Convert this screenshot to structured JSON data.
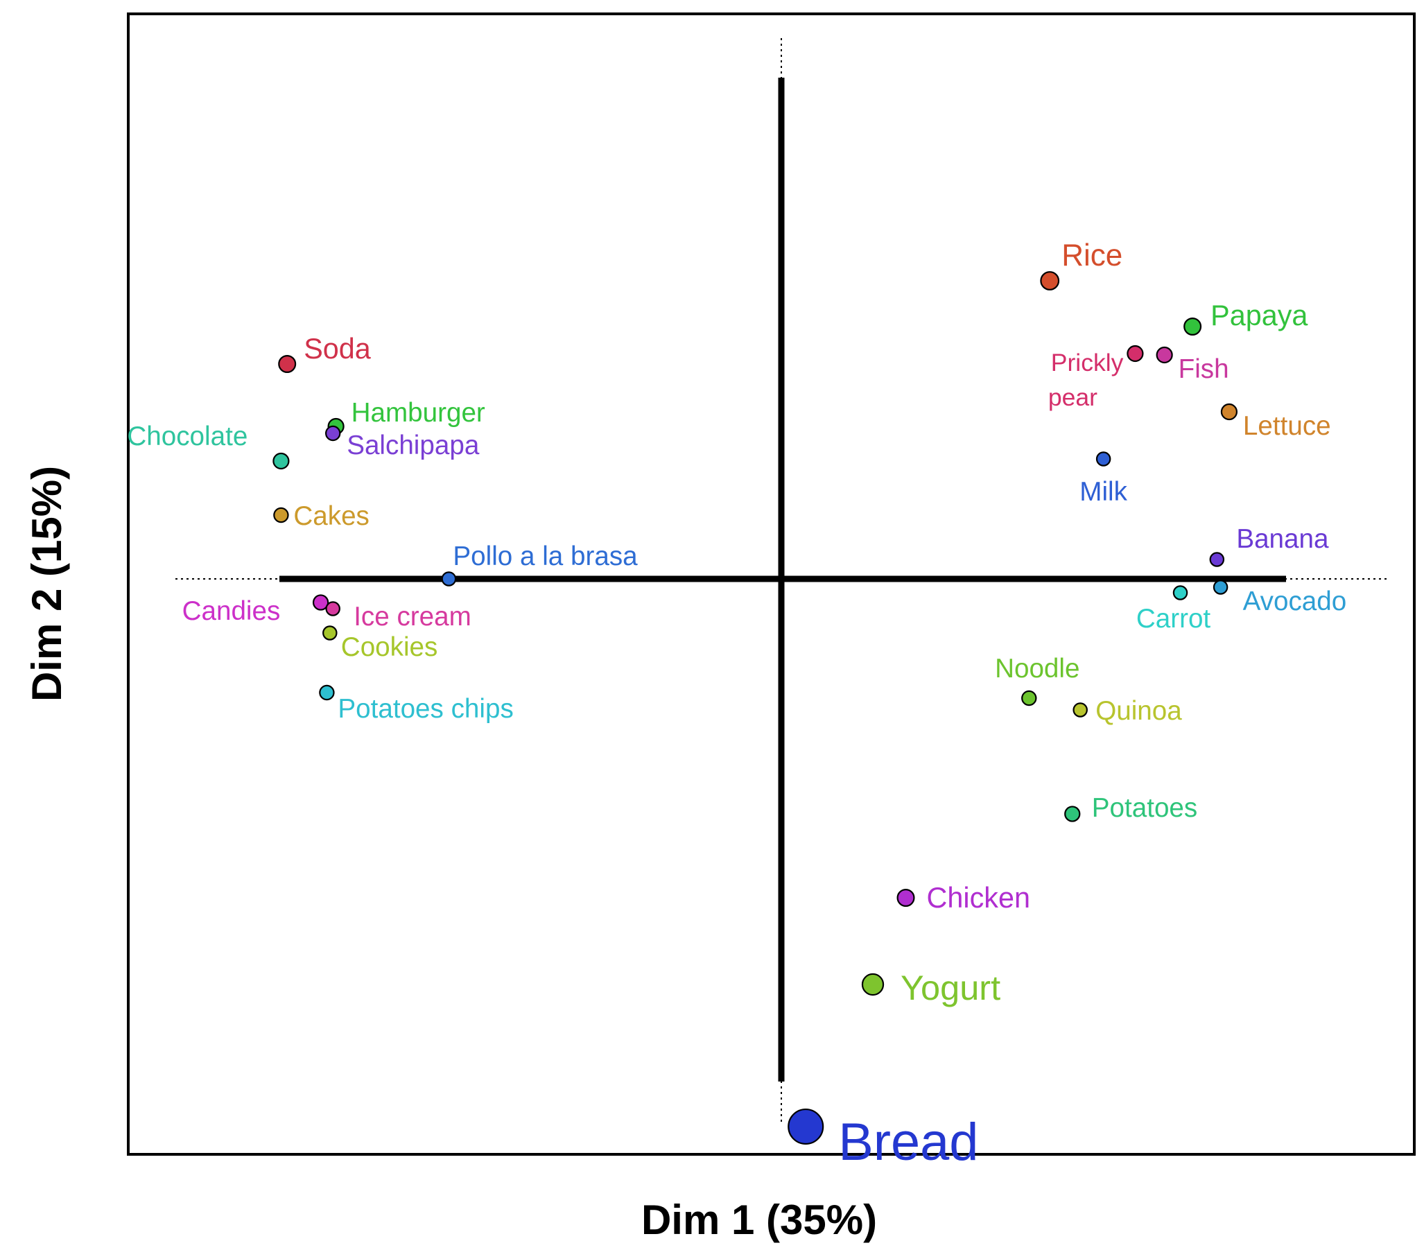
{
  "chart_data": {
    "type": "scatter",
    "title": "",
    "xlabel": "Dim 1 (35%)",
    "ylabel": "Dim 2 (15%)",
    "xlim": [
      -1.0,
      1.0
    ],
    "ylim": [
      -1.0,
      1.0
    ],
    "grid": false,
    "legend": "none",
    "points": [
      {
        "label": "Soda",
        "x": -0.81,
        "y": 0.31,
        "color": "#d0314a",
        "weight": 1.1
      },
      {
        "label": "Chocolate",
        "x": -0.82,
        "y": 0.17,
        "color": "#2fc49e",
        "weight": 1.0
      },
      {
        "label": "Hamburger",
        "x": -0.73,
        "y": 0.22,
        "color": "#33c43d",
        "weight": 1.0
      },
      {
        "label": "Salchipapa",
        "x": -0.735,
        "y": 0.21,
        "color": "#7a3fd4",
        "weight": 0.9
      },
      {
        "label": "Cakes",
        "x": -0.82,
        "y": 0.092,
        "color": "#cc9a2c",
        "weight": 0.9
      },
      {
        "label": "Pollo a la brasa",
        "x": -0.545,
        "y": 0.0,
        "color": "#2e6dd4",
        "weight": 0.85
      },
      {
        "label": "Candies",
        "x": -0.755,
        "y": -0.034,
        "color": "#cc30c9",
        "weight": 0.95
      },
      {
        "label": "Ice cream",
        "x": -0.735,
        "y": -0.043,
        "color": "#d63a9e",
        "weight": 0.85
      },
      {
        "label": "Cookies",
        "x": -0.74,
        "y": -0.078,
        "color": "#a6c62b",
        "weight": 0.85
      },
      {
        "label": "Potatoes chips",
        "x": -0.745,
        "y": -0.164,
        "color": "#2ebfd0",
        "weight": 0.9
      },
      {
        "label": "Rice",
        "x": 0.44,
        "y": 0.43,
        "color": "#d44e2c",
        "weight": 1.2
      },
      {
        "label": "Papaya",
        "x": 0.674,
        "y": 0.364,
        "color": "#32c23c",
        "weight": 1.1
      },
      {
        "label": "Prickly pear",
        "x": 0.58,
        "y": 0.325,
        "color": "#d42e6a",
        "weight": 1.0
      },
      {
        "label": "Fish",
        "x": 0.628,
        "y": 0.323,
        "color": "#c8389e",
        "weight": 1.0
      },
      {
        "label": "Lettuce",
        "x": 0.734,
        "y": 0.241,
        "color": "#d0842c",
        "weight": 1.0
      },
      {
        "label": "Milk",
        "x": 0.528,
        "y": 0.173,
        "color": "#2e5fd4",
        "weight": 0.85
      },
      {
        "label": "Banana",
        "x": 0.714,
        "y": 0.028,
        "color": "#6a3ad4",
        "weight": 0.85
      },
      {
        "label": "Carrot",
        "x": 0.654,
        "y": -0.02,
        "color": "#2ed0c8",
        "weight": 0.85
      },
      {
        "label": "Avocado",
        "x": 0.72,
        "y": -0.012,
        "color": "#2e9ed4",
        "weight": 0.85
      },
      {
        "label": "Noodle",
        "x": 0.406,
        "y": -0.172,
        "color": "#6cc42e",
        "weight": 0.9
      },
      {
        "label": "Quinoa",
        "x": 0.49,
        "y": -0.189,
        "color": "#b8c42e",
        "weight": 0.85
      },
      {
        "label": "Potatoes",
        "x": 0.477,
        "y": -0.339,
        "color": "#2ec47a",
        "weight": 0.95
      },
      {
        "label": "Chicken",
        "x": 0.204,
        "y": -0.46,
        "color": "#b02ed0",
        "weight": 1.1
      },
      {
        "label": "Yogurt",
        "x": 0.15,
        "y": -0.585,
        "color": "#7ec42e",
        "weight": 1.45
      },
      {
        "label": "Bread",
        "x": 0.04,
        "y": -0.79,
        "color": "#2438d0",
        "weight": 2.55
      }
    ]
  }
}
